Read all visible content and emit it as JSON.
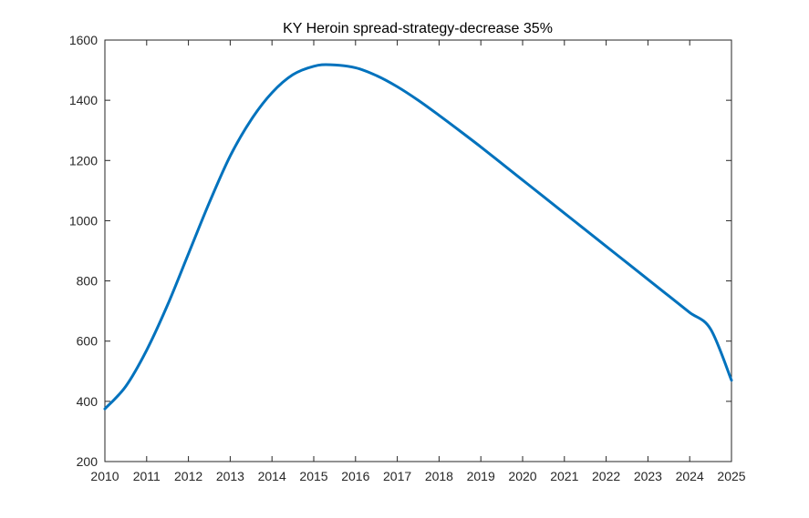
{
  "chart_data": {
    "type": "line",
    "title": "KY Heroin spread-strategy-decrease 35%",
    "xlabel": "",
    "ylabel": "",
    "xlim": [
      2010,
      2025
    ],
    "ylim": [
      200,
      1600
    ],
    "x_ticks": [
      2010,
      2011,
      2012,
      2013,
      2014,
      2015,
      2016,
      2017,
      2018,
      2019,
      2020,
      2021,
      2022,
      2023,
      2024,
      2025
    ],
    "y_ticks": [
      200,
      400,
      600,
      800,
      1000,
      1200,
      1400,
      1600
    ],
    "grid": false,
    "legend": "none",
    "series": [
      {
        "color": "#0072BD",
        "x": [
          2010,
          2010.5,
          2011,
          2011.5,
          2012,
          2012.5,
          2013,
          2013.5,
          2014,
          2014.5,
          2015,
          2015.4,
          2016,
          2016.5,
          2017,
          2017.5,
          2018,
          2018.5,
          2019,
          2019.5,
          2020,
          2020.5,
          2021,
          2021.5,
          2022,
          2022.5,
          2023,
          2023.5,
          2024,
          2024.5,
          2025
        ],
        "y": [
          375,
          450,
          570,
          720,
          890,
          1060,
          1215,
          1335,
          1425,
          1485,
          1513,
          1518,
          1508,
          1482,
          1445,
          1400,
          1350,
          1298,
          1245,
          1190,
          1135,
          1080,
          1025,
          970,
          915,
          860,
          805,
          750,
          695,
          640,
          470
        ]
      }
    ]
  }
}
